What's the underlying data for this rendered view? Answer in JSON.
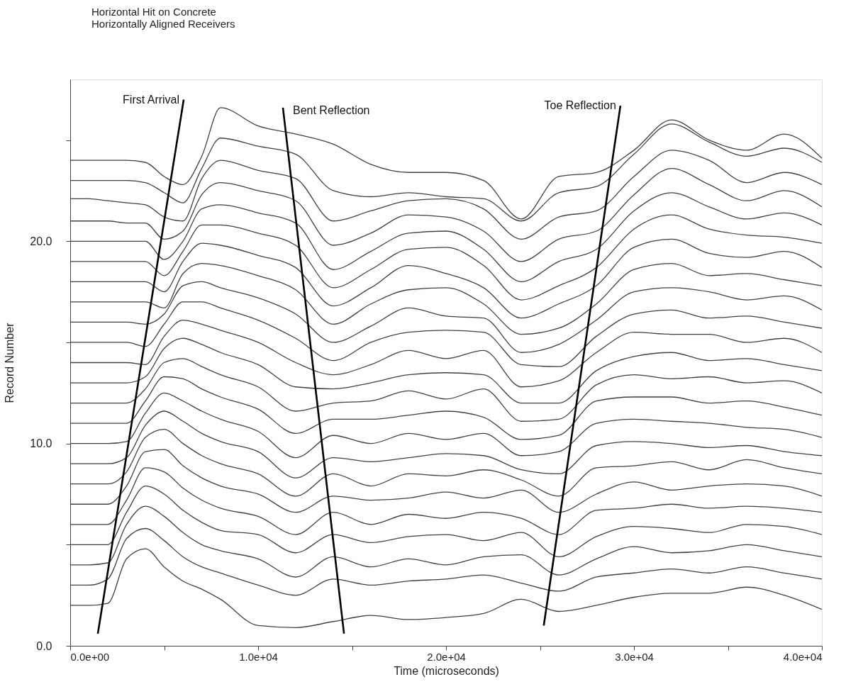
{
  "chart_data": {
    "type": "line",
    "title": "Horizontal Hit on Concrete",
    "subtitle": "Horizontally Aligned Receivers",
    "xlabel": "Time (microseconds)",
    "ylabel": "Record Number",
    "x": [
      0,
      1000,
      2000,
      3000,
      4000,
      5000,
      6000,
      7000,
      8000,
      10000,
      12000,
      14000,
      16000,
      18000,
      20000,
      22000,
      24000,
      26000,
      28000,
      30000,
      32000,
      34000,
      36000,
      38000,
      40000
    ],
    "xlim": [
      0,
      40000
    ],
    "ylim": [
      0,
      28
    ],
    "xticks": [
      {
        "value": 0,
        "label": "0.0e+00"
      },
      {
        "value": 5000,
        "label": null
      },
      {
        "value": 10000,
        "label": "1.0e+04"
      },
      {
        "value": 15000,
        "label": null
      },
      {
        "value": 20000,
        "label": "2.0e+04"
      },
      {
        "value": 25000,
        "label": null
      },
      {
        "value": 30000,
        "label": "3.0e+04"
      },
      {
        "value": 35000,
        "label": null
      },
      {
        "value": 40000,
        "label": "4.0e+04"
      }
    ],
    "yticks": [
      {
        "value": 0,
        "label": "0.0"
      },
      {
        "value": 5,
        "label": null
      },
      {
        "value": 10,
        "label": "10.0"
      },
      {
        "value": 15,
        "label": null
      },
      {
        "value": 20,
        "label": "20.0"
      },
      {
        "value": 25,
        "label": null
      }
    ],
    "grid": false,
    "marker": "none",
    "line_style": "solid",
    "series": [
      {
        "color": "#404040",
        "values": [
          2.0,
          2.0,
          2.1,
          4.3,
          4.8,
          3.9,
          3.2,
          2.8,
          2.3,
          1.0,
          0.9,
          1.2,
          1.5,
          1.3,
          1.4,
          1.6,
          2.3,
          1.7,
          2.0,
          2.4,
          2.6,
          2.6,
          2.9,
          2.5,
          1.8
        ]
      },
      {
        "color": "#404040",
        "values": [
          3,
          3,
          3.3,
          5.3,
          5.8,
          5.2,
          4.4,
          3.9,
          3.6,
          3.0,
          2.5,
          3.3,
          3.0,
          3.2,
          3.3,
          3.5,
          3.1,
          2.7,
          3.4,
          3.6,
          3.8,
          3.6,
          3.9,
          3.6,
          3.3
        ]
      },
      {
        "color": "#404040",
        "values": [
          4,
          4,
          4.1,
          6.0,
          6.9,
          6.4,
          5.6,
          5.0,
          4.7,
          4.3,
          3.4,
          4.4,
          3.9,
          4.3,
          4.0,
          4.4,
          4.5,
          3.5,
          4.3,
          4.9,
          4.6,
          4.7,
          5.0,
          4.7,
          4.4
        ]
      },
      {
        "color": "#404040",
        "values": [
          5,
          5,
          5,
          6.6,
          7.9,
          7.5,
          6.7,
          6.1,
          5.7,
          5.5,
          4.6,
          5.5,
          5.1,
          5.4,
          5.5,
          5.2,
          5.6,
          4.4,
          5.4,
          5.9,
          5.8,
          5.6,
          6.0,
          5.9,
          5.5
        ]
      },
      {
        "color": "#404040",
        "values": [
          6,
          6,
          6,
          7.2,
          8.8,
          8.6,
          7.8,
          7.2,
          6.8,
          6.4,
          5.5,
          6.6,
          6.0,
          6.5,
          6.3,
          6.6,
          6.3,
          5.5,
          6.7,
          6.8,
          7.0,
          6.8,
          6.9,
          6.8,
          6.6
        ]
      },
      {
        "color": "#404040",
        "values": [
          7,
          7,
          7,
          7.9,
          9.6,
          9.7,
          8.9,
          8.3,
          7.9,
          7.5,
          6.6,
          7.4,
          7.2,
          7.3,
          7.6,
          7.3,
          7.7,
          6.6,
          7.5,
          8.1,
          7.7,
          7.9,
          8.0,
          7.9,
          7.4
        ]
      },
      {
        "color": "#404040",
        "values": [
          8,
          8,
          8,
          8.6,
          10.3,
          10.7,
          10.0,
          9.4,
          9.0,
          8.5,
          7.4,
          8.5,
          7.9,
          8.5,
          8.4,
          8.7,
          8.2,
          7.4,
          8.8,
          8.9,
          9.1,
          8.7,
          9.2,
          8.8,
          8.5
        ]
      },
      {
        "color": "#404040",
        "values": [
          9,
          9,
          9,
          9.3,
          10.9,
          11.6,
          11.1,
          10.5,
          10.1,
          9.6,
          8.3,
          9.3,
          9.1,
          9.3,
          9.5,
          9.4,
          8.7,
          8.5,
          9.9,
          10.1,
          10.0,
          9.8,
          9.9,
          9.6,
          9.4
        ]
      },
      {
        "color": "#404040",
        "values": [
          10,
          10,
          10,
          10.1,
          11.5,
          12.5,
          12.1,
          11.6,
          11.2,
          10.6,
          9.3,
          10.4,
          10.0,
          10.5,
          10.2,
          10.5,
          9.4,
          9.6,
          11.0,
          11.2,
          11.1,
          11.0,
          10.8,
          10.7,
          10.3
        ]
      },
      {
        "color": "#404040",
        "values": [
          11,
          11,
          11,
          11,
          12.1,
          13.3,
          13.2,
          12.7,
          12.3,
          11.7,
          10.5,
          11.2,
          11.2,
          11.4,
          11.6,
          11.3,
          10.2,
          10.4,
          12.1,
          12.3,
          12.3,
          12.0,
          12.1,
          11.8,
          11.4
        ]
      },
      {
        "color": "#404040",
        "values": [
          12,
          12,
          12,
          12,
          12.7,
          14.0,
          14.2,
          13.8,
          13.4,
          12.8,
          11.6,
          12.0,
          12.1,
          12.6,
          12.2,
          12.7,
          11.1,
          11.2,
          12.9,
          13.4,
          13.2,
          13.3,
          13.0,
          13.1,
          12.5
        ]
      },
      {
        "color": "#404040",
        "values": [
          13,
          13,
          13,
          13,
          13.3,
          14.7,
          15.2,
          14.9,
          14.5,
          13.9,
          12.8,
          12.7,
          13.0,
          13.4,
          13.5,
          13.4,
          12.0,
          12.0,
          13.6,
          14.3,
          14.5,
          14.1,
          14.2,
          13.9,
          13.6
        ]
      },
      {
        "color": "#404040",
        "values": [
          14,
          14,
          14,
          14,
          13.9,
          15.3,
          16.1,
          15.9,
          15.6,
          15.0,
          14.0,
          13.4,
          13.9,
          14.6,
          14.2,
          14.6,
          12.8,
          13.1,
          14.5,
          15.5,
          15.4,
          15.4,
          15.0,
          15.2,
          14.5
        ]
      },
      {
        "color": "#404040",
        "values": [
          15,
          15,
          15,
          15,
          14.8,
          15.9,
          17.0,
          17.0,
          16.7,
          16.1,
          15.2,
          14.1,
          15.0,
          15.5,
          15.6,
          15.5,
          13.9,
          13.8,
          15.3,
          16.4,
          16.6,
          16.2,
          16.3,
          16.0,
          15.7
        ]
      },
      {
        "color": "#404040",
        "values": [
          16,
          16,
          16,
          16,
          15.9,
          16.4,
          17.8,
          18.0,
          17.7,
          17.2,
          16.4,
          15.0,
          15.8,
          16.7,
          16.3,
          16.2,
          14.5,
          14.9,
          16.1,
          17.5,
          17.7,
          17.5,
          17.1,
          17.3,
          16.6
        ]
      },
      {
        "color": "#404040",
        "values": [
          17,
          17,
          17,
          17,
          17,
          16.7,
          18.4,
          18.9,
          18.8,
          18.3,
          17.6,
          15.9,
          16.9,
          17.6,
          17.7,
          16.9,
          15.4,
          15.7,
          16.9,
          18.6,
          18.9,
          18.3,
          18.4,
          18.1,
          17.8
        ]
      },
      {
        "color": "#404040",
        "values": [
          18,
          18,
          18,
          18,
          18,
          17.5,
          19.0,
          19.9,
          19.8,
          19.3,
          18.7,
          16.8,
          17.7,
          18.8,
          18.4,
          17.7,
          16.2,
          16.9,
          17.8,
          19.7,
          20.1,
          19.4,
          19.2,
          19.5,
          18.7
        ]
      },
      {
        "color": "#404040",
        "values": [
          19,
          19,
          19,
          19,
          19,
          18.3,
          19.5,
          20.8,
          20.8,
          20.4,
          19.8,
          17.7,
          18.6,
          19.6,
          19.7,
          18.8,
          17.1,
          17.8,
          18.7,
          20.6,
          21.3,
          20.6,
          20.3,
          20.2,
          19.9
        ]
      },
      {
        "color": "#404040",
        "values": [
          20,
          20,
          20,
          20,
          20,
          19.1,
          20.0,
          21.6,
          21.8,
          21.4,
          20.9,
          18.6,
          19.5,
          20.4,
          20.5,
          19.6,
          18.0,
          19.0,
          19.6,
          21.5,
          22.4,
          21.7,
          21.1,
          21.4,
          20.8
        ]
      },
      {
        "color": "#404040",
        "values": [
          21,
          21,
          21,
          20.9,
          20.9,
          20.1,
          20.5,
          22.3,
          22.9,
          22.5,
          22.0,
          19.8,
          20.4,
          21.3,
          21.2,
          20.5,
          19.0,
          20.1,
          20.5,
          22.3,
          23.6,
          22.8,
          22.0,
          22.5,
          21.7
        ]
      },
      {
        "color": "#404040",
        "values": [
          22.1,
          22.1,
          22,
          21.9,
          21.8,
          21.2,
          21.0,
          23.1,
          24.0,
          23.5,
          23.1,
          21.0,
          21.5,
          22.0,
          22.1,
          21.6,
          20.1,
          21.2,
          21.5,
          23.2,
          24.5,
          24.0,
          22.9,
          23.4,
          22.8
        ]
      },
      {
        "color": "#404040",
        "values": [
          23,
          23,
          23,
          23,
          22.9,
          22.4,
          21.9,
          23.6,
          25.1,
          24.7,
          24.3,
          22.5,
          22.2,
          22.4,
          22.2,
          22.1,
          21.0,
          22.4,
          22.7,
          24.3,
          25.8,
          24.9,
          24.2,
          24.6,
          23.9
        ]
      },
      {
        "color": "#404040",
        "values": [
          24,
          24,
          24,
          24,
          23.9,
          23.2,
          22.8,
          24.2,
          26.6,
          25.7,
          25.3,
          24.8,
          23.8,
          23.4,
          23.4,
          23.0,
          21.1,
          23.2,
          23.4,
          24.5,
          26.0,
          25.0,
          24.5,
          25.3,
          24.1
        ]
      },
      {
        "type": "line",
        "name": "First Arrival",
        "color": "#000000",
        "x": [
          1470,
          6040
        ],
        "values": [
          0.6,
          27.0
        ]
      },
      {
        "type": "line",
        "name": "Bent Reflection",
        "color": "#000000",
        "x": [
          14570,
          11320
        ],
        "values": [
          0.6,
          26.6
        ]
      },
      {
        "type": "line",
        "name": "Toe Reflection",
        "color": "#000000",
        "x": [
          25200,
          29280
        ],
        "values": [
          1.0,
          26.7
        ]
      }
    ]
  }
}
